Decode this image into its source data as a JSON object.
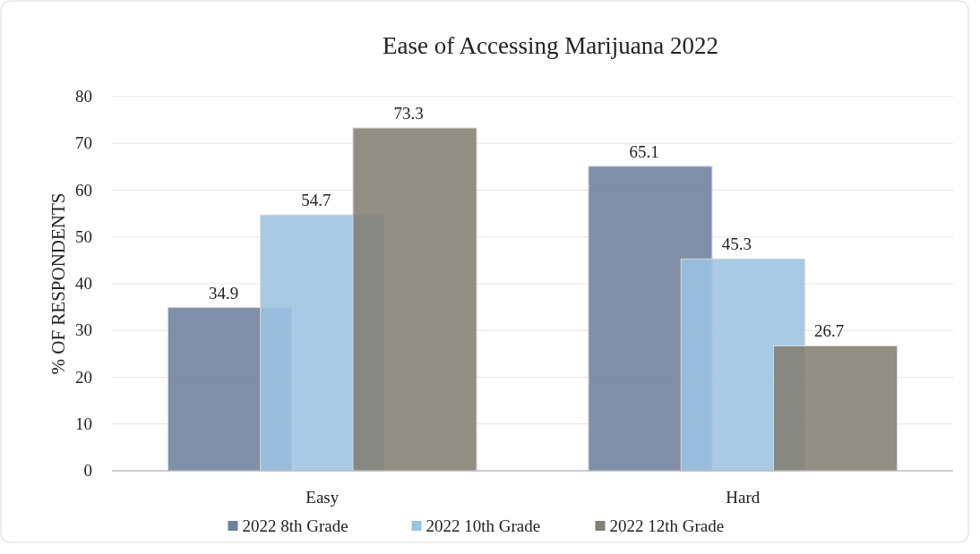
{
  "chart_data": {
    "type": "bar",
    "title": "Ease of Accessing Marijuana 2022",
    "ylabel": "% OF RESPONDENTS",
    "categories": [
      "Easy",
      "Hard"
    ],
    "series": [
      {
        "name": "2022 8th Grade",
        "color": "#6d809c",
        "values": [
          34.9,
          65.1
        ]
      },
      {
        "name": "2022 10th Grade",
        "color": "#9cc3e1",
        "values": [
          54.7,
          45.3
        ]
      },
      {
        "name": "2022 12th Grade",
        "color": "#828073",
        "values": [
          73.3,
          26.7
        ]
      }
    ],
    "ylim": [
      0,
      80
    ],
    "yticks": [
      0,
      10,
      20,
      30,
      40,
      50,
      60,
      70,
      80
    ],
    "grid": "y",
    "legend": "bottom",
    "data_labels": true
  }
}
